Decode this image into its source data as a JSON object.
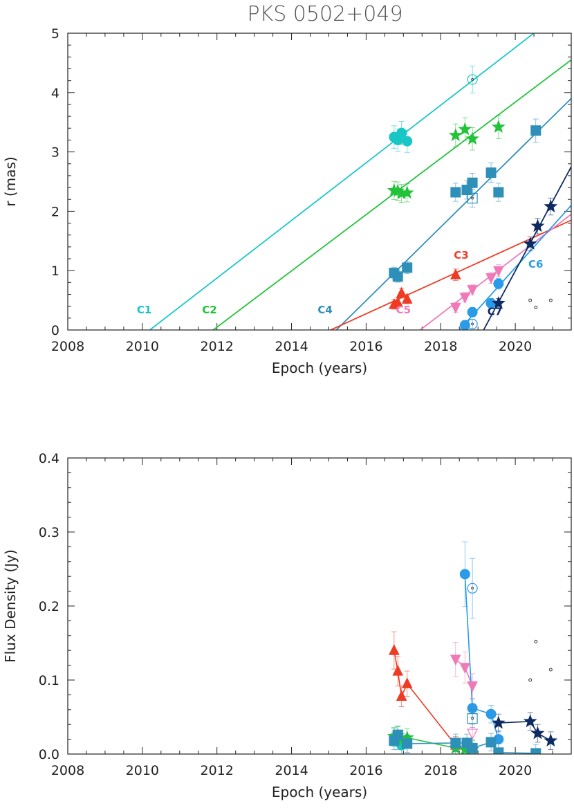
{
  "chart_data": [
    {
      "type": "scatter",
      "title": "PKS 0502+049",
      "xlabel": "Epoch (years)",
      "ylabel": "r (mas)",
      "xlim": [
        2008,
        2021.5
      ],
      "ylim": [
        0,
        5
      ],
      "xticks": [
        "2008",
        "2010",
        "2012",
        "2014",
        "2016",
        "2018",
        "2020"
      ],
      "yticks": [
        "0",
        "1",
        "2",
        "3",
        "4",
        "5"
      ],
      "grid": false,
      "series": [
        {
          "name": "C1",
          "color": "#19c6c6",
          "marker": "circle",
          "x": [
            2016.75,
            2016.85,
            2016.95,
            2017.1,
            2018.85
          ],
          "y": [
            3.25,
            3.2,
            3.32,
            3.18,
            4.22
          ],
          "open": [
            false,
            false,
            false,
            false,
            true
          ],
          "fit": [
            [
              2010.2,
              0
            ],
            [
              2020.6,
              5.05
            ]
          ],
          "label_at": [
            2010.05,
            0.28
          ]
        },
        {
          "name": "C2",
          "color": "#22c33a",
          "marker": "star",
          "x": [
            2016.75,
            2016.85,
            2016.95,
            2017.1,
            2018.4,
            2018.65,
            2018.85,
            2019.55
          ],
          "y": [
            2.35,
            2.34,
            2.3,
            2.31,
            3.28,
            3.38,
            3.22,
            3.42
          ],
          "fit": [
            [
              2011.9,
              0
            ],
            [
              2021.5,
              4.55
            ]
          ],
          "label_at": [
            2011.8,
            0.28
          ]
        },
        {
          "name": "C4",
          "color": "#2e8fb8",
          "marker": "square",
          "x": [
            2016.75,
            2016.85,
            2017.1,
            2018.4,
            2018.7,
            2018.85,
            2018.85,
            2019.35,
            2019.55,
            2020.55
          ],
          "y": [
            0.96,
            0.9,
            1.05,
            2.32,
            2.36,
            2.48,
            2.22,
            2.65,
            2.32,
            3.36
          ],
          "open": [
            false,
            false,
            false,
            false,
            false,
            false,
            true,
            false,
            false,
            false
          ],
          "fit": [
            [
              2015.2,
              0
            ],
            [
              2021.5,
              3.9
            ]
          ],
          "label_at": [
            2014.9,
            0.28
          ]
        },
        {
          "name": "C3",
          "color": "#ee3b24",
          "marker": "triangle",
          "x": [
            2016.75,
            2016.85,
            2016.95,
            2017.1,
            2018.4
          ],
          "y": [
            0.43,
            0.46,
            0.62,
            0.52,
            0.93
          ],
          "fit": [
            [
              2015.05,
              0
            ],
            [
              2021.5,
              1.85
            ]
          ],
          "label_at": [
            2018.55,
            1.2
          ]
        },
        {
          "name": "C5",
          "color": "#f07ab8",
          "marker": "triangle-down",
          "x": [
            2018.4,
            2018.65,
            2018.85,
            2019.35,
            2019.55
          ],
          "y": [
            0.38,
            0.55,
            0.68,
            0.88,
            1.0
          ],
          "fit": [
            [
              2017.45,
              0
            ],
            [
              2021.5,
              1.95
            ]
          ],
          "label_at": [
            2017.0,
            0.28
          ]
        },
        {
          "name": "C6",
          "color": "#2b9be8",
          "marker": "circle",
          "x": [
            2018.65,
            2018.85,
            2018.85,
            2019.35,
            2019.55
          ],
          "y": [
            0.08,
            0.3,
            0.1,
            0.45,
            0.78
          ],
          "open": [
            false,
            false,
            true,
            false,
            false
          ],
          "fit": [
            [
              2018.5,
              0
            ],
            [
              2021.5,
              2.1
            ]
          ],
          "label_at": [
            2020.55,
            1.05
          ]
        },
        {
          "name": "C7",
          "color": "#0d2a63",
          "marker": "star",
          "x": [
            2019.55,
            2020.4,
            2020.6,
            2020.95
          ],
          "y": [
            0.45,
            1.45,
            1.75,
            2.08
          ],
          "fit": [
            [
              2019.15,
              0
            ],
            [
              2021.5,
              2.75
            ]
          ],
          "label_at": [
            2019.45,
            0.25
          ]
        },
        {
          "name": "",
          "color": "#333333",
          "marker": "dot",
          "x": [
            2020.4,
            2020.55,
            2020.95
          ],
          "y": [
            0.5,
            0.38,
            0.5
          ]
        }
      ]
    },
    {
      "type": "scatter",
      "title": "",
      "xlabel": "Epoch (years)",
      "ylabel": "Flux Density (Jy)",
      "xlim": [
        2008,
        2021.5
      ],
      "ylim": [
        0,
        0.4
      ],
      "xticks": [
        "2008",
        "2010",
        "2012",
        "2014",
        "2016",
        "2018",
        "2020"
      ],
      "yticks": [
        "0.0",
        "0.1",
        "0.2",
        "0.3",
        "0.4"
      ],
      "grid": false,
      "series": [
        {
          "name": "C3",
          "color": "#ee3b24",
          "marker": "triangle",
          "x": [
            2016.75,
            2016.85,
            2016.95,
            2017.1,
            2018.4
          ],
          "y": [
            0.14,
            0.112,
            0.078,
            0.095,
            0.012
          ],
          "connect": true
        },
        {
          "name": "C5",
          "color": "#f07ab8",
          "marker": "triangle-down",
          "x": [
            2018.4,
            2018.65,
            2018.85,
            2018.85
          ],
          "y": [
            0.128,
            0.117,
            0.092,
            0.028
          ],
          "open": [
            false,
            false,
            false,
            true
          ],
          "connect": true
        },
        {
          "name": "C6",
          "color": "#2b9be8",
          "marker": "circle",
          "x": [
            2018.65,
            2018.85,
            2018.85,
            2019.35,
            2019.55
          ],
          "y": [
            0.243,
            0.062,
            0.224,
            0.054,
            0.02
          ],
          "open": [
            false,
            false,
            true,
            false,
            false
          ],
          "connect": true
        },
        {
          "name": "C1",
          "color": "#19c6c6",
          "marker": "circle",
          "x": [
            2016.75,
            2016.85,
            2016.95,
            2017.1
          ],
          "y": [
            0.022,
            0.018,
            0.012,
            0.014
          ],
          "connect": true
        },
        {
          "name": "C2",
          "color": "#22c33a",
          "marker": "star",
          "x": [
            2016.75,
            2016.85,
            2016.95,
            2017.1,
            2018.4,
            2018.65,
            2018.85
          ],
          "y": [
            0.024,
            0.025,
            0.02,
            0.022,
            0.008,
            0.006,
            0.006
          ],
          "connect": true
        },
        {
          "name": "C4",
          "color": "#2e8fb8",
          "marker": "square",
          "x": [
            2016.75,
            2016.85,
            2017.1,
            2018.4,
            2018.7,
            2018.85,
            2018.85,
            2019.35,
            2019.55,
            2020.55
          ],
          "y": [
            0.018,
            0.026,
            0.014,
            0.015,
            0.015,
            0.008,
            0.048,
            0.016,
            0.002,
            0.001
          ],
          "open": [
            false,
            false,
            false,
            false,
            false,
            false,
            true,
            false,
            false,
            false
          ],
          "connect": true
        },
        {
          "name": "C7",
          "color": "#0d2a63",
          "marker": "star",
          "x": [
            2019.55,
            2020.4,
            2020.6,
            2020.95
          ],
          "y": [
            0.042,
            0.044,
            0.028,
            0.018
          ],
          "connect": true
        },
        {
          "name": "",
          "color": "#333333",
          "marker": "dot",
          "x": [
            2020.4,
            2020.55,
            2020.95
          ],
          "y": [
            0.1,
            0.152,
            0.114
          ]
        }
      ]
    }
  ]
}
